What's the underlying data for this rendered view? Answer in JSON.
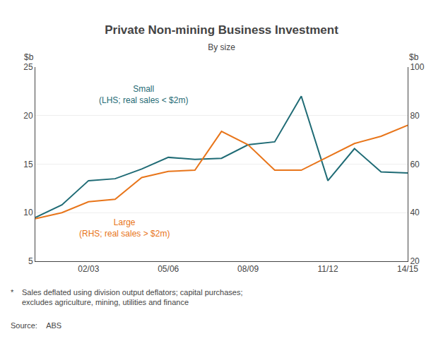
{
  "chart_data": {
    "type": "line",
    "title": "Private Non-mining Business Investment",
    "subtitle": "By size",
    "ylabel": "$b",
    "y2label": "$b",
    "categories": [
      null,
      null,
      "02/03",
      null,
      null,
      "05/06",
      null,
      null,
      "08/09",
      null,
      null,
      "11/12",
      null,
      null,
      "14/15"
    ],
    "series": [
      {
        "color": "#1F6B75",
        "values": [
          9.5,
          10.8,
          13.3,
          13.5,
          14.5,
          15.7,
          15.5,
          15.6,
          17.0,
          17.3,
          22.0,
          13.3,
          16.6,
          14.2,
          14.1
        ]
      },
      {
        "color": "#E8751A",
        "axis": "y2",
        "values": [
          37.5,
          40.0,
          44.5,
          45.5,
          54.5,
          57.0,
          57.5,
          73.5,
          68.0,
          57.5,
          57.5,
          63.0,
          68.5,
          71.5,
          76.0
        ]
      }
    ],
    "annotations": [
      {
        "text": "Small\n(LHS; real sales < $2m)",
        "color": "#1F6B75"
      },
      {
        "text": "Large\n(RHS; real sales > $2m)",
        "color": "#E8751A"
      }
    ],
    "ylim": [
      5,
      25
    ],
    "yticks": [
      5,
      10,
      15,
      20,
      25
    ],
    "y2lim": [
      20,
      100
    ],
    "y2ticks": [
      20,
      40,
      60,
      80,
      100
    ],
    "grid": true,
    "footnote_mark": "*",
    "footnote": "Sales deflated using division output deflators; capital purchases;\nexcludes agriculture, mining, utilities and finance",
    "source": "Source:    ABS"
  }
}
